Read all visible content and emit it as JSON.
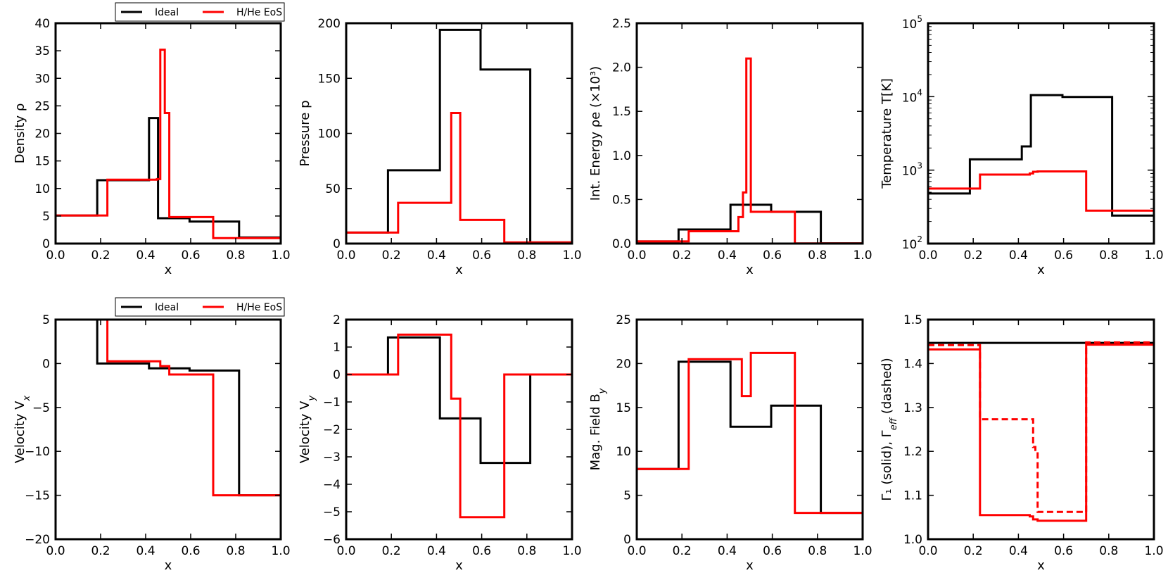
{
  "chart_data": [
    {
      "type": "line",
      "ylabel": "Density ρ",
      "xlabel": "x",
      "xlim": [
        0,
        1
      ],
      "ylim": [
        0,
        40
      ],
      "yscale": "linear",
      "xticks": [
        "0.0",
        "0.2",
        "0.4",
        "0.6",
        "0.8",
        "1.0"
      ],
      "yticks": [
        "0",
        "5",
        "10",
        "15",
        "20",
        "25",
        "30",
        "35",
        "40"
      ],
      "legend": {
        "entries": [
          "Ideal",
          "H/He EoS"
        ],
        "placement": "top-center, above axes"
      },
      "series": [
        {
          "name": "Ideal",
          "color": "#000000",
          "dashed": false,
          "x": [
            0,
            0.185,
            0.185,
            0.415,
            0.415,
            0.455,
            0.455,
            0.595,
            0.595,
            0.815,
            0.815,
            1.0
          ],
          "y": [
            5.1,
            5.1,
            11.5,
            11.5,
            22.8,
            22.8,
            4.6,
            4.6,
            4.0,
            4.0,
            1.1,
            1.1
          ]
        },
        {
          "name": "H/He EoS",
          "color": "#ff0000",
          "dashed": false,
          "x": [
            0,
            0.23,
            0.23,
            0.45,
            0.45,
            0.465,
            0.465,
            0.485,
            0.485,
            0.505,
            0.505,
            0.7,
            0.7,
            1.0
          ],
          "y": [
            5.1,
            5.1,
            11.6,
            11.6,
            11.7,
            11.7,
            35.2,
            35.2,
            23.7,
            23.7,
            4.8,
            4.8,
            1.0,
            1.0
          ]
        }
      ]
    },
    {
      "type": "line",
      "ylabel": "Pressure p",
      "xlabel": "x",
      "xlim": [
        0,
        1
      ],
      "ylim": [
        0,
        200
      ],
      "yscale": "linear",
      "xticks": [
        "0.0",
        "0.2",
        "0.4",
        "0.6",
        "0.8",
        "1.0"
      ],
      "yticks": [
        "0",
        "50",
        "100",
        "150",
        "200"
      ],
      "series": [
        {
          "name": "Ideal",
          "color": "#000000",
          "dashed": false,
          "x": [
            0,
            0.185,
            0.185,
            0.415,
            0.415,
            0.595,
            0.595,
            0.815,
            0.815,
            1.0
          ],
          "y": [
            10,
            10,
            66.5,
            66.5,
            194,
            194,
            158,
            158,
            1,
            1
          ]
        },
        {
          "name": "H/He EoS",
          "color": "#ff0000",
          "dashed": false,
          "x": [
            0,
            0.23,
            0.23,
            0.465,
            0.465,
            0.505,
            0.505,
            0.7,
            0.7,
            1.0
          ],
          "y": [
            10,
            10,
            37,
            37,
            118.5,
            118.5,
            21.5,
            21.5,
            1,
            1
          ]
        }
      ]
    },
    {
      "type": "line",
      "ylabel": "Int. Energy ρe  (×10³)",
      "xlabel": "x",
      "xlim": [
        0,
        1
      ],
      "ylim": [
        0,
        2.5
      ],
      "yscale": "linear",
      "xticks": [
        "0.0",
        "0.2",
        "0.4",
        "0.6",
        "0.8",
        "1.0"
      ],
      "yticks": [
        "0.0",
        "0.5",
        "1.0",
        "1.5",
        "2.0",
        "2.5"
      ],
      "series": [
        {
          "name": "Ideal",
          "color": "#000000",
          "dashed": false,
          "x": [
            0,
            0.185,
            0.185,
            0.415,
            0.415,
            0.595,
            0.595,
            0.815,
            0.815,
            1.0
          ],
          "y": [
            0.025,
            0.025,
            0.16,
            0.16,
            0.44,
            0.44,
            0.36,
            0.36,
            0.0025,
            0.0025
          ]
        },
        {
          "name": "H/He EoS",
          "color": "#ff0000",
          "dashed": false,
          "x": [
            0,
            0.23,
            0.23,
            0.45,
            0.45,
            0.47,
            0.47,
            0.485,
            0.485,
            0.505,
            0.505,
            0.7,
            0.7,
            1.0
          ],
          "y": [
            0.025,
            0.025,
            0.14,
            0.14,
            0.3,
            0.3,
            0.58,
            0.58,
            2.1,
            2.1,
            0.36,
            0.36,
            0.0025,
            0.0025
          ]
        }
      ]
    },
    {
      "type": "line",
      "ylabel": "Temperature T[K]",
      "xlabel": "x",
      "xlim": [
        0,
        1
      ],
      "ylim": [
        100,
        100000
      ],
      "yscale": "log",
      "xticks": [
        "0.0",
        "0.2",
        "0.4",
        "0.6",
        "0.8",
        "1.0"
      ],
      "yticks": [
        {
          "base": "10",
          "exp": "2",
          "value": 100
        },
        {
          "base": "10",
          "exp": "3",
          "value": 1000
        },
        {
          "base": "10",
          "exp": "4",
          "value": 10000
        },
        {
          "base": "10",
          "exp": "5",
          "value": 100000
        }
      ],
      "series": [
        {
          "name": "Ideal",
          "color": "#000000",
          "dashed": false,
          "x": [
            0,
            0.185,
            0.185,
            0.415,
            0.415,
            0.455,
            0.455,
            0.595,
            0.595,
            0.815,
            0.815,
            1.0
          ],
          "y": [
            480,
            480,
            1400,
            1400,
            2100,
            2100,
            10500,
            10500,
            9900,
            9900,
            240,
            240
          ]
        },
        {
          "name": "H/He EoS",
          "color": "#ff0000",
          "dashed": false,
          "x": [
            0,
            0.23,
            0.23,
            0.45,
            0.45,
            0.465,
            0.465,
            0.485,
            0.485,
            0.7,
            0.7,
            1.0
          ],
          "y": [
            560,
            560,
            870,
            870,
            900,
            900,
            950,
            950,
            960,
            960,
            280,
            280
          ]
        }
      ]
    },
    {
      "type": "line",
      "ylabel": "Velocity V_x",
      "xlabel": "x",
      "xlim": [
        0,
        1
      ],
      "ylim": [
        -20,
        5
      ],
      "yscale": "linear",
      "xticks": [
        "0.0",
        "0.2",
        "0.4",
        "0.6",
        "0.8",
        "1.0"
      ],
      "yticks": [
        "−20",
        "−15",
        "−10",
        "−5",
        "0",
        "5"
      ],
      "legend": {
        "entries": [
          "Ideal",
          "H/He EoS"
        ],
        "placement": "top-center, above axes"
      },
      "series": [
        {
          "name": "Ideal",
          "color": "#000000",
          "dashed": false,
          "x": [
            0.185,
            0.185,
            0.415,
            0.415,
            0.595,
            0.595,
            0.815,
            0.815,
            1.0
          ],
          "y": [
            5,
            0.0,
            0.0,
            -0.55,
            -0.55,
            -0.8,
            -0.8,
            -15,
            -15
          ]
        },
        {
          "name": "H/He EoS",
          "color": "#ff0000",
          "dashed": false,
          "x": [
            0.23,
            0.23,
            0.465,
            0.465,
            0.505,
            0.505,
            0.7,
            0.7,
            1.0
          ],
          "y": [
            5,
            0.25,
            0.25,
            -0.3,
            -0.3,
            -1.25,
            -1.25,
            -15,
            -15
          ]
        }
      ]
    },
    {
      "type": "line",
      "ylabel": "Velocity V_y",
      "xlabel": "x",
      "xlim": [
        0,
        1
      ],
      "ylim": [
        -6,
        2
      ],
      "yscale": "linear",
      "xticks": [
        "0.0",
        "0.2",
        "0.4",
        "0.6",
        "0.8",
        "1.0"
      ],
      "yticks": [
        "−6",
        "−5",
        "−4",
        "−3",
        "−2",
        "−1",
        "0",
        "1",
        "2"
      ],
      "series": [
        {
          "name": "Ideal",
          "color": "#000000",
          "dashed": false,
          "x": [
            0,
            0.185,
            0.185,
            0.415,
            0.415,
            0.595,
            0.595,
            0.815,
            0.815,
            1.0
          ],
          "y": [
            0,
            0,
            1.35,
            1.35,
            -1.6,
            -1.6,
            -3.22,
            -3.22,
            0,
            0
          ]
        },
        {
          "name": "H/He EoS",
          "color": "#ff0000",
          "dashed": false,
          "x": [
            0,
            0.23,
            0.23,
            0.465,
            0.465,
            0.505,
            0.505,
            0.7,
            0.7,
            1.0
          ],
          "y": [
            0,
            0,
            1.45,
            1.45,
            -0.88,
            -0.88,
            -5.2,
            -5.2,
            0,
            0
          ]
        }
      ]
    },
    {
      "type": "line",
      "ylabel": "Mag. Field B_y",
      "xlabel": "x",
      "xlim": [
        0,
        1
      ],
      "ylim": [
        0,
        25
      ],
      "yscale": "linear",
      "xticks": [
        "0.0",
        "0.2",
        "0.4",
        "0.6",
        "0.8",
        "1.0"
      ],
      "yticks": [
        "0",
        "5",
        "10",
        "15",
        "20",
        "25"
      ],
      "series": [
        {
          "name": "Ideal",
          "color": "#000000",
          "dashed": false,
          "x": [
            0,
            0.185,
            0.185,
            0.415,
            0.415,
            0.595,
            0.595,
            0.815,
            0.815,
            1.0
          ],
          "y": [
            8,
            8,
            20.2,
            20.2,
            12.8,
            12.8,
            15.2,
            15.2,
            3,
            3
          ]
        },
        {
          "name": "H/He EoS",
          "color": "#ff0000",
          "dashed": false,
          "x": [
            0,
            0.23,
            0.23,
            0.465,
            0.465,
            0.505,
            0.505,
            0.7,
            0.7,
            1.0
          ],
          "y": [
            8,
            8,
            20.5,
            20.5,
            16.3,
            16.3,
            21.2,
            21.2,
            3,
            3
          ]
        }
      ]
    },
    {
      "type": "line",
      "ylabel": "Γ₁ (solid), Γ_eff (dashed)",
      "xlabel": "x",
      "xlim": [
        0,
        1
      ],
      "ylim": [
        1.0,
        1.5
      ],
      "yscale": "linear",
      "xticks": [
        "0.0",
        "0.2",
        "0.4",
        "0.6",
        "0.8",
        "1.0"
      ],
      "yticks": [
        "1.0",
        "1.1",
        "1.2",
        "1.3",
        "1.4",
        "1.5"
      ],
      "series": [
        {
          "name": "Ideal",
          "color": "#000000",
          "dashed": false,
          "x": [
            0,
            1.0
          ],
          "y": [
            1.447,
            1.447
          ]
        },
        {
          "name": "H/He EoS",
          "color": "#ff0000",
          "dashed": false,
          "x": [
            0,
            0.23,
            0.23,
            0.45,
            0.45,
            0.465,
            0.465,
            0.485,
            0.485,
            0.7,
            0.7,
            1.0
          ],
          "y": [
            1.432,
            1.432,
            1.055,
            1.055,
            1.052,
            1.052,
            1.045,
            1.045,
            1.042,
            1.042,
            1.443,
            1.443
          ]
        },
        {
          "name": "H/He EoS",
          "color": "#ff0000",
          "dashed": true,
          "x": [
            0,
            0.23,
            0.23,
            0.465,
            0.465,
            0.475,
            0.475,
            0.485,
            0.485,
            0.7,
            0.7,
            1.0
          ],
          "y": [
            1.442,
            1.442,
            1.273,
            1.273,
            1.21,
            1.21,
            1.2,
            1.2,
            1.062,
            1.062,
            1.448,
            1.448
          ]
        }
      ]
    }
  ]
}
